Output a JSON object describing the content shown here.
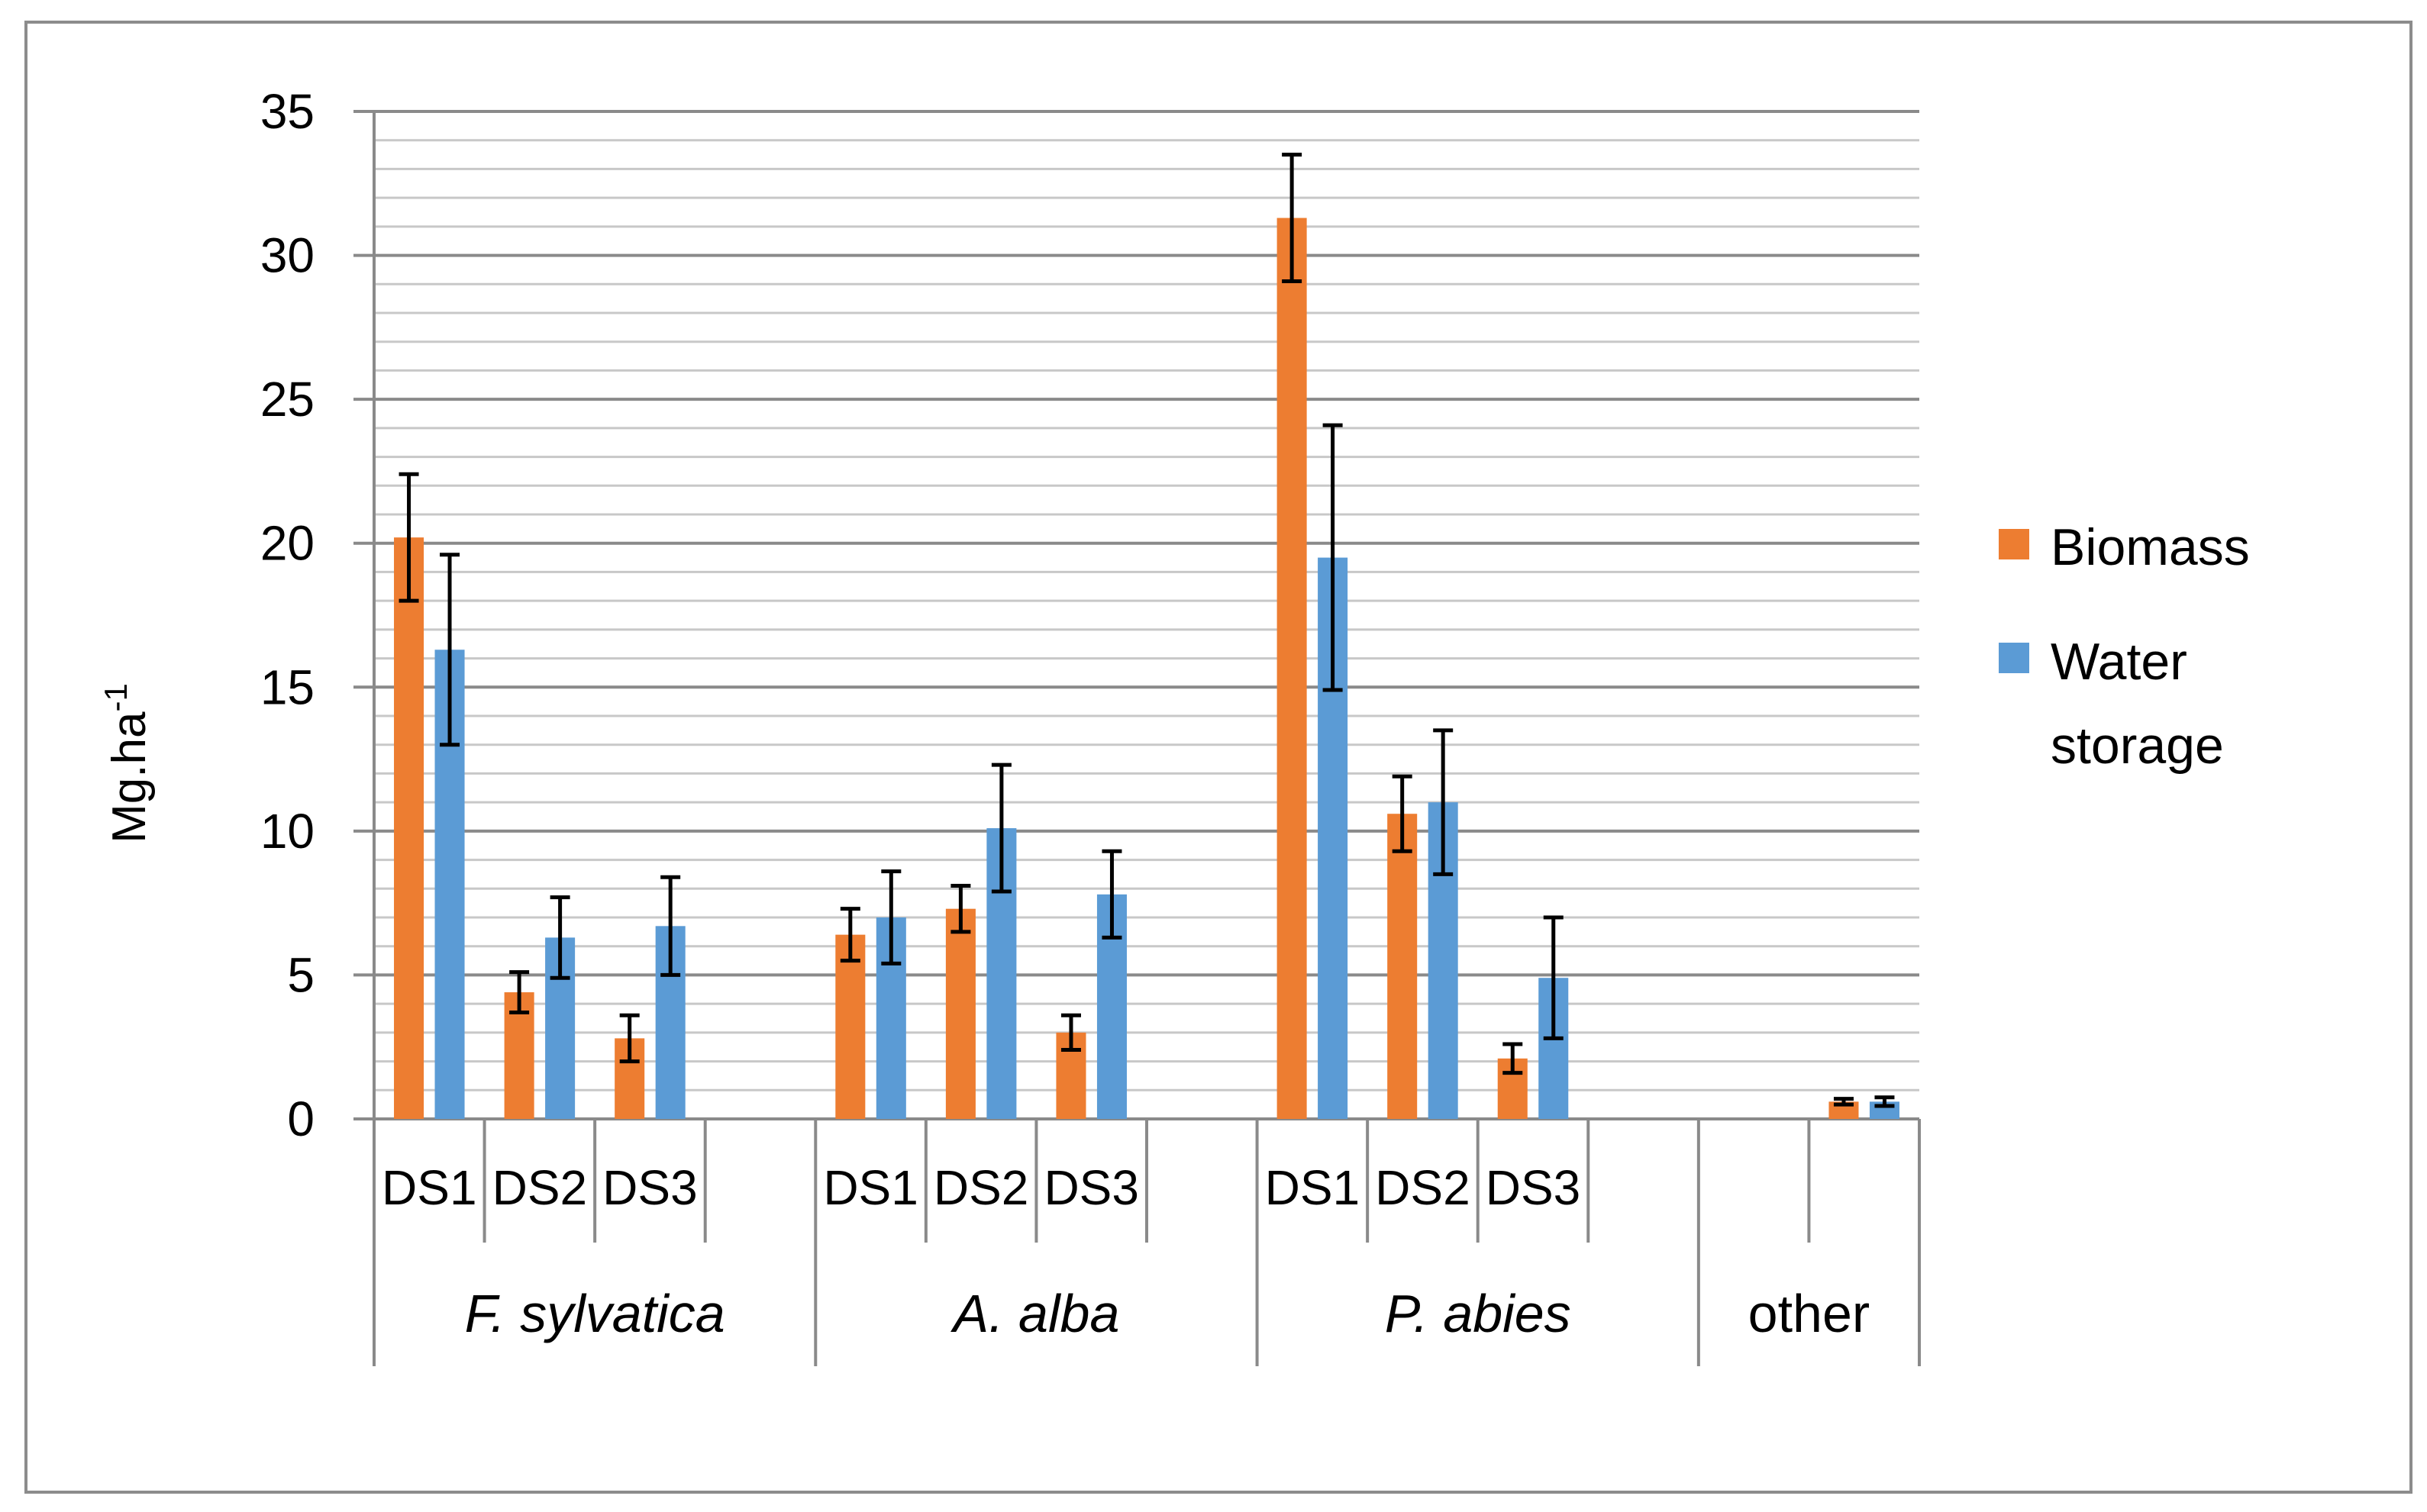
{
  "chart_data": {
    "type": "bar",
    "title": "",
    "ylabel": "Mg.ha",
    "ylabel_superscript": "-1",
    "ylim": [
      0,
      35
    ],
    "yticks": [
      0,
      5,
      10,
      15,
      20,
      25,
      30,
      35
    ],
    "minor_grid_step": 1,
    "groups": [
      {
        "label": "F. sylvatica",
        "italic": true,
        "categories": [
          "DS1",
          "DS2",
          "DS3",
          ""
        ]
      },
      {
        "label": "A. alba",
        "italic": true,
        "categories": [
          "DS1",
          "DS2",
          "DS3",
          ""
        ]
      },
      {
        "label": "P. abies",
        "italic": true,
        "categories": [
          "DS1",
          "DS2",
          "DS3",
          ""
        ]
      },
      {
        "label": "other",
        "italic": false,
        "categories": [
          "",
          ""
        ]
      }
    ],
    "series": [
      {
        "name": "Biomass",
        "color": "#ED7D31",
        "values": [
          20.2,
          4.4,
          2.8,
          null,
          6.4,
          7.3,
          3.0,
          null,
          31.3,
          10.6,
          2.1,
          null,
          null,
          0.6
        ],
        "errors": [
          2.2,
          0.7,
          0.8,
          null,
          0.9,
          0.8,
          0.6,
          null,
          2.2,
          1.3,
          0.5,
          null,
          null,
          0.1
        ]
      },
      {
        "name": "Water storage",
        "legend_lines": [
          "Water",
          "storage"
        ],
        "color": "#5B9BD5",
        "values": [
          16.3,
          6.3,
          6.7,
          null,
          7.0,
          10.1,
          7.8,
          null,
          19.5,
          11.0,
          4.9,
          null,
          null,
          0.6
        ],
        "errors": [
          3.3,
          1.4,
          1.7,
          null,
          1.6,
          2.2,
          1.5,
          null,
          4.6,
          2.5,
          2.1,
          null,
          null,
          0.15
        ]
      }
    ],
    "legend_position": "right"
  }
}
